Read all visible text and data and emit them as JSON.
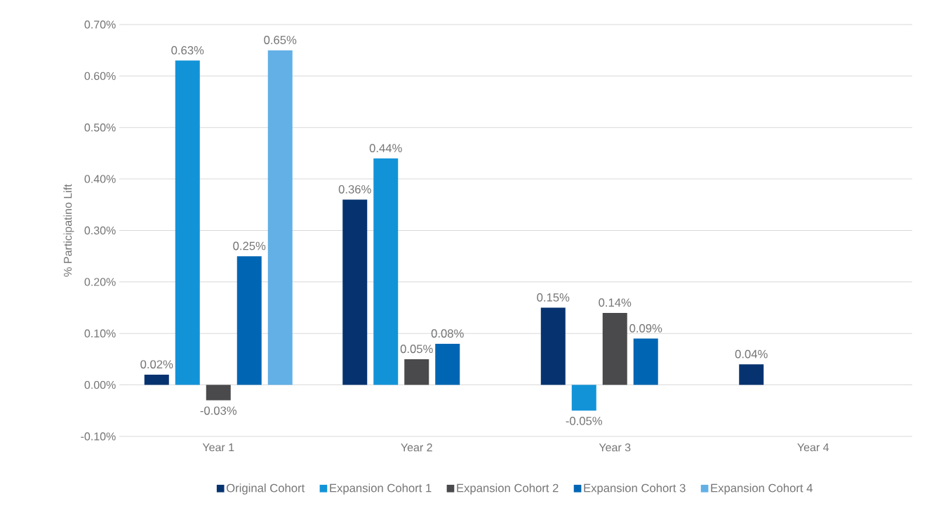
{
  "chart_data": {
    "type": "bar",
    "ylabel": "% Participatino Lift",
    "categories": [
      "Year 1",
      "Year 2",
      "Year 3",
      "Year 4"
    ],
    "series": [
      {
        "name": "Original Cohort",
        "color": "#063370",
        "values": [
          0.02,
          0.36,
          0.15,
          0.04
        ],
        "value_labels": [
          "0.02%",
          "0.36%",
          "0.15%",
          "0.04%"
        ]
      },
      {
        "name": "Expansion Cohort 1",
        "color": "#1293d8",
        "values": [
          0.63,
          0.44,
          -0.05,
          null
        ],
        "value_labels": [
          "0.63%",
          "0.44%",
          "-0.05%",
          null
        ]
      },
      {
        "name": "Expansion Cohort 2",
        "color": "#4a4a4c",
        "values": [
          -0.03,
          0.05,
          0.14,
          null
        ],
        "value_labels": [
          "-0.03%",
          "0.05%",
          "0.14%",
          null
        ]
      },
      {
        "name": "Expansion Cohort 3",
        "color": "#0066b3",
        "values": [
          0.25,
          0.08,
          0.09,
          null
        ],
        "value_labels": [
          "0.25%",
          "0.08%",
          "0.09%",
          null
        ]
      },
      {
        "name": "Expansion Cohort 4",
        "color": "#62b0e6",
        "values": [
          0.65,
          null,
          null,
          null
        ],
        "value_labels": [
          "0.65%",
          null,
          null,
          null
        ]
      }
    ],
    "ylim": [
      -0.1,
      0.7
    ],
    "yticks": [
      {
        "value": -0.1,
        "label": "-0.10%"
      },
      {
        "value": 0,
        "label": "0.00%"
      },
      {
        "value": 0.1,
        "label": "0.10%"
      },
      {
        "value": 0.2,
        "label": "0.20%"
      },
      {
        "value": 0.3,
        "label": "0.30%"
      },
      {
        "value": 0.4,
        "label": "0.40%"
      },
      {
        "value": 0.5,
        "label": "0.50%"
      },
      {
        "value": 0.6,
        "label": "0.60%"
      },
      {
        "value": 0.7,
        "label": "0.70%"
      }
    ],
    "grid": "y",
    "legend": "bottom"
  }
}
